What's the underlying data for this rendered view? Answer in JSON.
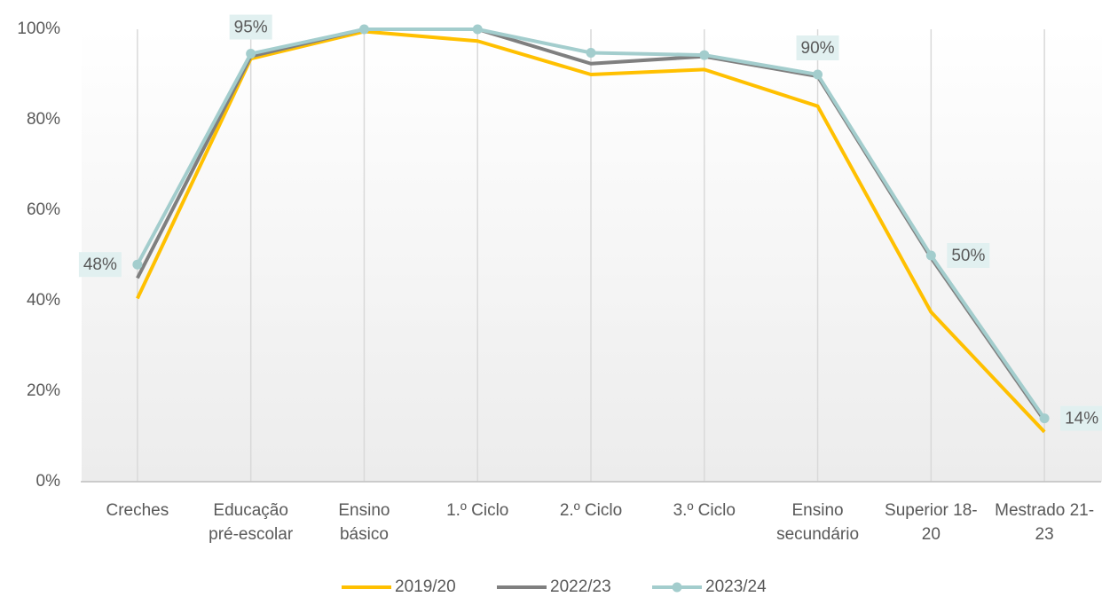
{
  "chart_data": {
    "type": "line",
    "categories": [
      "Creches",
      "Educação pré-escolar",
      "Ensino básico",
      "1.º Ciclo",
      "2.º Ciclo",
      "3.º Ciclo",
      "Ensino secundário",
      "Superior 18-20",
      "Mestrado 21-23"
    ],
    "series": [
      {
        "name": "2019/20",
        "color": "#ffc000",
        "values": [
          40.5,
          93.5,
          99.5,
          97.4,
          90,
          91.1,
          83,
          37.5,
          11
        ]
      },
      {
        "name": "2022/23",
        "color": "#7f7f7f",
        "values": [
          45,
          94,
          100,
          100,
          92.4,
          94,
          89.6,
          49.5,
          13.5
        ]
      },
      {
        "name": "2023/24",
        "color": "#a3cdcd",
        "values": [
          48,
          94.6,
          100,
          100,
          94.8,
          94.3,
          90,
          50,
          14
        ],
        "value_labels": [
          "48%",
          "95%",
          null,
          null,
          null,
          null,
          "90%",
          "50%",
          "14%"
        ]
      }
    ],
    "ylim": [
      0,
      100
    ],
    "yticks": [
      {
        "value": 0,
        "label": "0%"
      },
      {
        "value": 20,
        "label": "20%"
      },
      {
        "value": 40,
        "label": "40%"
      },
      {
        "value": 60,
        "label": "60%"
      },
      {
        "value": 80,
        "label": "80%"
      },
      {
        "value": 100,
        "label": "100%"
      }
    ],
    "grid": true,
    "legend": "bottom"
  }
}
